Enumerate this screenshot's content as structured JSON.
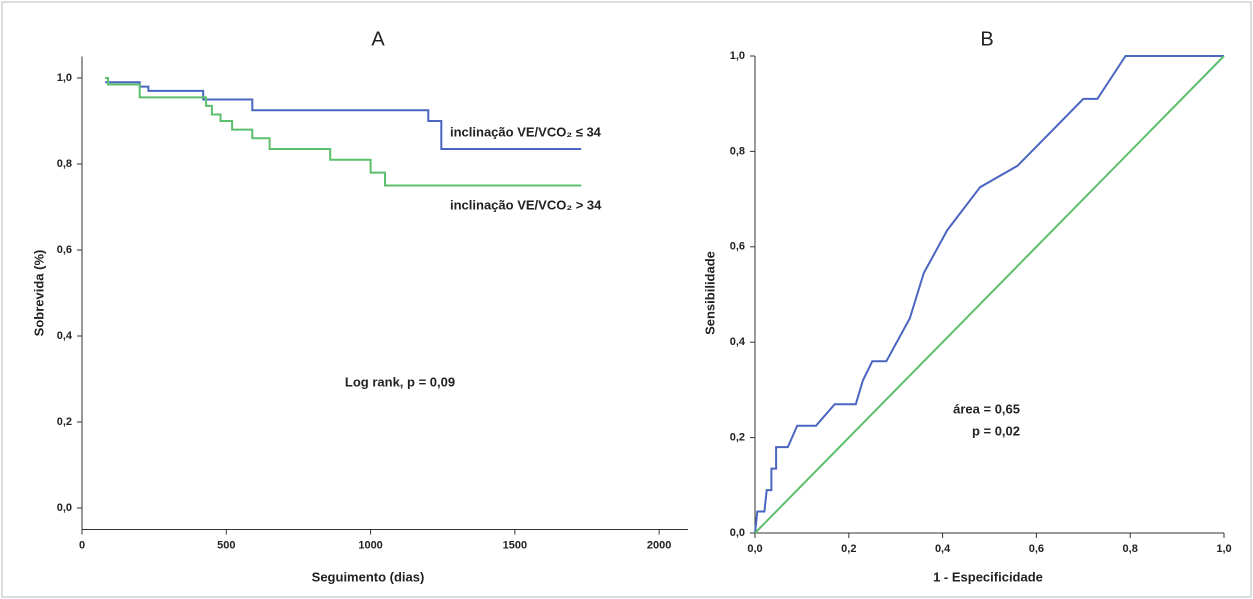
{
  "chart_data": [
    {
      "type": "line",
      "title": "A",
      "x_label": "Seguimento (dias)",
      "y_label": "Sobrevida (%)",
      "xlim": [
        0,
        2100
      ],
      "ylim": [
        -0.05,
        1.05
      ],
      "xticks": [
        0,
        500,
        1000,
        1500,
        2000
      ],
      "yticks": [
        {
          "value": 0,
          "label": "0,0"
        },
        {
          "value": 0.2,
          "label": "0,2"
        },
        {
          "value": 0.4,
          "label": "0,4"
        },
        {
          "value": 0.6,
          "label": "0,6"
        },
        {
          "value": 0.8,
          "label": "0,8"
        },
        {
          "value": 1,
          "label": "1,0"
        }
      ],
      "series": [
        {
          "name": "inclinação VE/VCO₂ ≤ 34",
          "color": "#4a66c0",
          "x": [
            80,
            200,
            200,
            230,
            230,
            420,
            420,
            590,
            590,
            1200,
            1200,
            1245,
            1245,
            1730
          ],
          "values": [
            0.99,
            0.99,
            0.98,
            0.98,
            0.97,
            0.97,
            0.95,
            0.95,
            0.925,
            0.925,
            0.9,
            0.9,
            0.835,
            0.835
          ]
        },
        {
          "name": "inclinação VE/VCO₂ > 34",
          "color": "#5cbf6b",
          "x": [
            80,
            90,
            90,
            200,
            200,
            430,
            430,
            450,
            450,
            480,
            480,
            520,
            520,
            590,
            590,
            650,
            650,
            860,
            860,
            1000,
            1000,
            1050,
            1050,
            1730
          ],
          "values": [
            1.0,
            1.0,
            0.985,
            0.985,
            0.955,
            0.955,
            0.935,
            0.935,
            0.915,
            0.915,
            0.9,
            0.9,
            0.88,
            0.88,
            0.86,
            0.86,
            0.835,
            0.835,
            0.81,
            0.81,
            0.78,
            0.78,
            0.75,
            0.75
          ]
        }
      ],
      "annotations": [
        "Log rank, p = 0,09"
      ]
    },
    {
      "type": "line",
      "title": "B",
      "x_label": "1 - Especificidade",
      "y_label": "Sensibilidade",
      "xlim": [
        0,
        1
      ],
      "ylim": [
        0,
        1
      ],
      "xticks": [
        {
          "value": 0,
          "label": "0,0"
        },
        {
          "value": 0.2,
          "label": "0,2"
        },
        {
          "value": 0.4,
          "label": "0,4"
        },
        {
          "value": 0.6,
          "label": "0,6"
        },
        {
          "value": 0.8,
          "label": "0,8"
        },
        {
          "value": 1,
          "label": "1,0"
        }
      ],
      "yticks": [
        {
          "value": 0,
          "label": "0,0"
        },
        {
          "value": 0.2,
          "label": "0,2"
        },
        {
          "value": 0.4,
          "label": "0,4"
        },
        {
          "value": 0.6,
          "label": "0,6"
        },
        {
          "value": 0.8,
          "label": "0,8"
        },
        {
          "value": 1,
          "label": "1,0"
        }
      ],
      "series": [
        {
          "color": "#4a66c0",
          "x": [
            0,
            0.005,
            0.02,
            0.025,
            0.035,
            0.035,
            0.045,
            0.045,
            0.07,
            0.09,
            0.13,
            0.17,
            0.215,
            0.23,
            0.25,
            0.28,
            0.33,
            0.36,
            0.41,
            0.48,
            0.56,
            0.63,
            0.7,
            0.73,
            0.79,
            1.0
          ],
          "values": [
            0,
            0.045,
            0.045,
            0.09,
            0.09,
            0.135,
            0.135,
            0.18,
            0.18,
            0.225,
            0.225,
            0.27,
            0.27,
            0.32,
            0.36,
            0.36,
            0.45,
            0.545,
            0.635,
            0.725,
            0.77,
            0.84,
            0.91,
            0.91,
            1.0,
            1.0
          ]
        },
        {
          "color": "#5cbf6b",
          "x": [
            0,
            1
          ],
          "values": [
            0,
            1
          ]
        }
      ],
      "annotations": [
        "área = 0,65",
        "p = 0,02"
      ]
    }
  ]
}
